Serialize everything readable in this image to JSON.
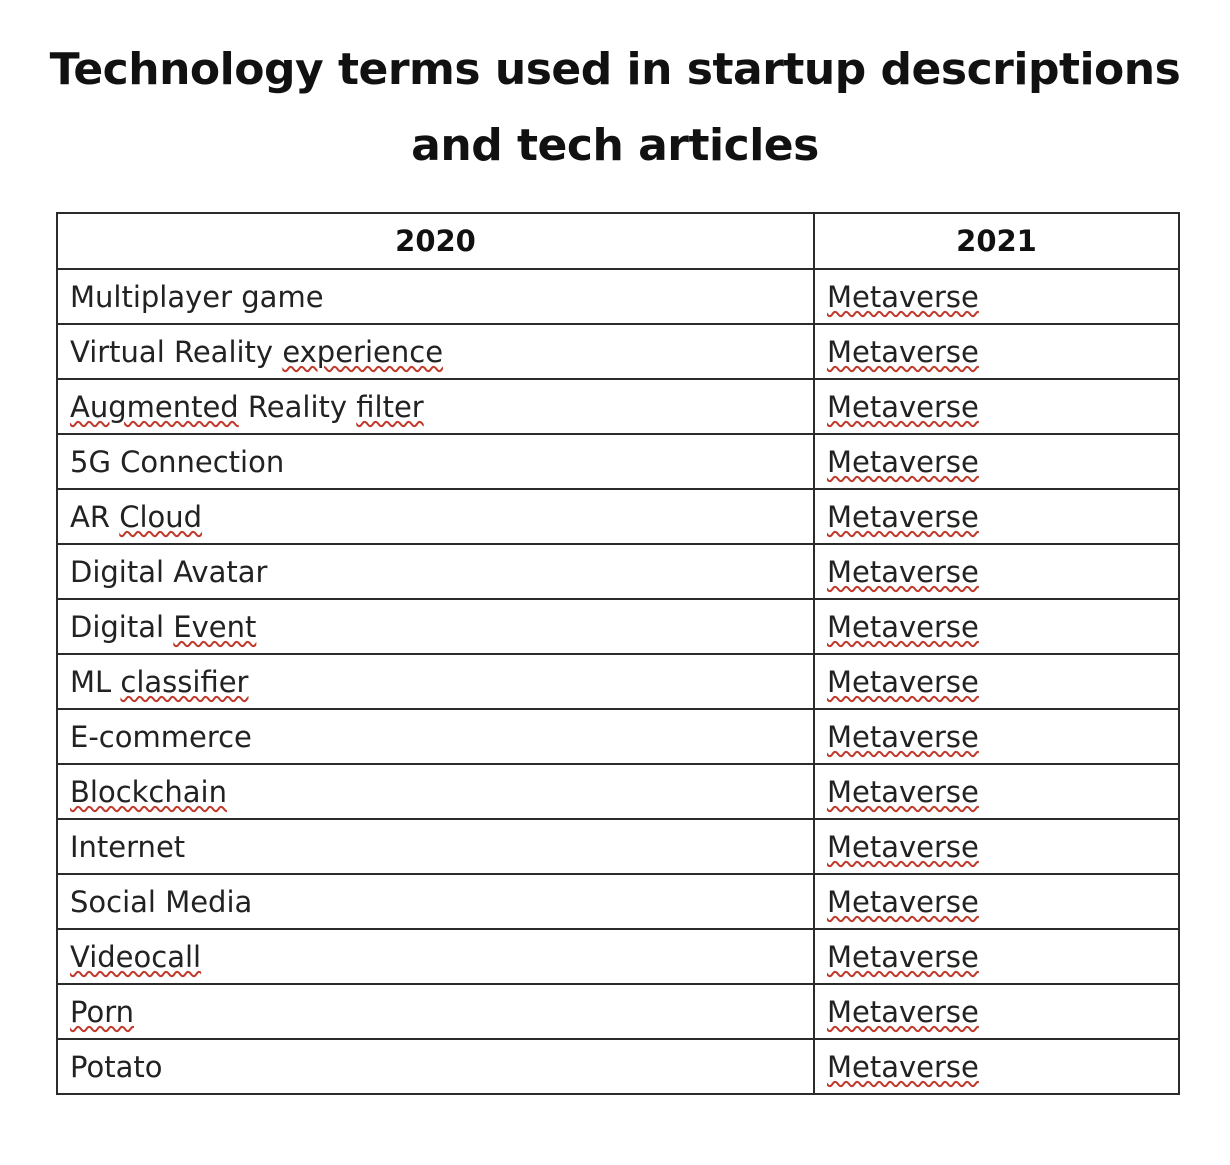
{
  "title": {
    "line1": "Technology terms used in startup descriptions",
    "line2": "and tech articles"
  },
  "table": {
    "headers": [
      "2020",
      "2021"
    ],
    "rows": [
      {
        "before": "Multiplayer game",
        "after": "Metaverse"
      },
      {
        "before": "Virtual Reality experience",
        "after": "Metaverse"
      },
      {
        "before": "Augmented Reality filter",
        "after": "Metaverse"
      },
      {
        "before": "5G Connection",
        "after": "Metaverse"
      },
      {
        "before": "AR Cloud",
        "after": "Metaverse"
      },
      {
        "before": "Digital Avatar",
        "after": "Metaverse"
      },
      {
        "before": "Digital Event",
        "after": "Metaverse"
      },
      {
        "before": "ML classifier",
        "after": "Metaverse"
      },
      {
        "before": "E-commerce",
        "after": "Metaverse"
      },
      {
        "before": "Blockchain",
        "after": "Metaverse"
      },
      {
        "before": "Internet",
        "after": "Metaverse"
      },
      {
        "before": "Social Media",
        "after": "Metaverse"
      },
      {
        "before": "Videocall",
        "after": "Metaverse"
      },
      {
        "before": "Porn",
        "after": "Metaverse"
      },
      {
        "before": "Potato",
        "after": "Metaverse"
      }
    ]
  },
  "colors": {
    "spellcheck_underline": "#c0392b",
    "border": "#2b2b2b"
  }
}
